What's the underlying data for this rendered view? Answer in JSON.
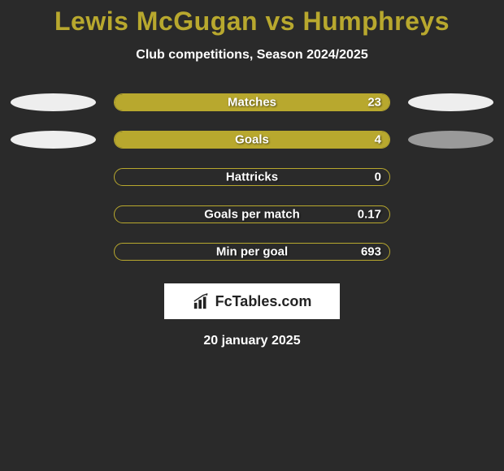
{
  "title": "Lewis McGugan vs Humphreys",
  "subtitle": "Club competitions, Season 2024/2025",
  "date": "20 january 2025",
  "logo_text": "FcTables.com",
  "colors": {
    "accent": "#b8a82e",
    "pill_white": "#eeeeee",
    "pill_gray": "#9a9a9a",
    "background": "#2a2a2a",
    "text": "#ffffff",
    "logo_bg": "#ffffff",
    "logo_text": "#222222"
  },
  "bar_style": {
    "outer_width": 340,
    "outer_height": 22,
    "border_radius": 11,
    "label_fontsize": 15
  },
  "pill_style": {
    "width": 105,
    "height": 22
  },
  "rows": [
    {
      "label": "Matches",
      "value": "23",
      "fill_pct": 100,
      "left_pill": "#eeeeee",
      "right_pill": "#eeeeee"
    },
    {
      "label": "Goals",
      "value": "4",
      "fill_pct": 100,
      "left_pill": "#eeeeee",
      "right_pill": "#9a9a9a"
    },
    {
      "label": "Hattricks",
      "value": "0",
      "fill_pct": 0,
      "left_pill": null,
      "right_pill": null
    },
    {
      "label": "Goals per match",
      "value": "0.17",
      "fill_pct": 0,
      "left_pill": null,
      "right_pill": null
    },
    {
      "label": "Min per goal",
      "value": "693",
      "fill_pct": 0,
      "left_pill": null,
      "right_pill": null
    }
  ]
}
